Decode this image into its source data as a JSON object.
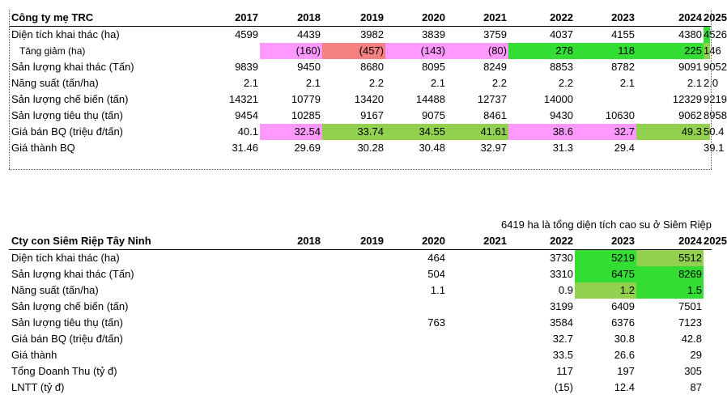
{
  "colors": {
    "pink": "#ff99ff",
    "red": "#f48080",
    "green": "#33dd33",
    "lightgreen": "#92d050"
  },
  "table1": {
    "title": "Công ty mẹ TRC",
    "years": [
      "2017",
      "2018",
      "2019",
      "2020",
      "2021",
      "2022",
      "2023",
      "2024",
      "2025"
    ],
    "rows": [
      {
        "label": "Diện tích khai thác (ha)",
        "values": [
          "4599",
          "4439",
          "3982",
          "3839",
          "3759",
          "4037",
          "4155",
          "4380",
          "4526"
        ],
        "colors": [
          "",
          "",
          "",
          "",
          "",
          "",
          "",
          "",
          "green"
        ]
      },
      {
        "label": "Tăng giảm (ha)",
        "sub": true,
        "values": [
          "",
          "(160)",
          "(457)",
          "(143)",
          "(80)",
          "278",
          "118",
          "225",
          "146"
        ],
        "colors": [
          "",
          "pink",
          "red",
          "pink",
          "pink",
          "green",
          "green",
          "green",
          "lightgreen"
        ]
      },
      {
        "label": "Sản lượng khai thác (Tấn)",
        "values": [
          "9839",
          "9450",
          "8680",
          "8095",
          "8249",
          "8853",
          "8782",
          "9091",
          "9052"
        ],
        "colors": []
      },
      {
        "label": "Năng suất (tấn/ha)",
        "values": [
          "2.1",
          "2.1",
          "2.2",
          "2.1",
          "2.2",
          "2.2",
          "2.1",
          "2.1",
          "2.0"
        ],
        "colors": []
      },
      {
        "label": "Sản lượng chế biến (tấn)",
        "values": [
          "14321",
          "10779",
          "13420",
          "14488",
          "12737",
          "14000",
          "",
          "12329",
          "9219"
        ],
        "colors": []
      },
      {
        "label": "Sản lượng tiêu thụ (tấn)",
        "values": [
          "9454",
          "10285",
          "9167",
          "9075",
          "8461",
          "9430",
          "10630",
          "9062",
          "8958"
        ],
        "colors": []
      },
      {
        "label": "Giá bán BQ (triệu đ/tấn)",
        "values": [
          "40.1",
          "32.54",
          "33.74",
          "34.55",
          "41.61",
          "38.6",
          "32.7",
          "49.3",
          "50.4"
        ],
        "colors": [
          "",
          "pink",
          "lightgreen",
          "lightgreen",
          "lightgreen",
          "pink",
          "pink",
          "lightgreen",
          "lightgreen"
        ]
      },
      {
        "label": "Giá thành BQ",
        "values": [
          "31.46",
          "29.69",
          "30.28",
          "30.48",
          "32.97",
          "31.3",
          "29.4",
          "",
          "39.1"
        ],
        "colors": []
      }
    ]
  },
  "note": "6419 ha là tổng diện tích cao su ở  Siêm Riệp",
  "table2": {
    "title": "Cty con Siêm Riệp Tây Ninh",
    "years": [
      "",
      "2018",
      "2019",
      "2020",
      "2021",
      "2022",
      "2023",
      "2024",
      "2025"
    ],
    "rows": [
      {
        "label": "Diện tích khai thác (ha)",
        "values": [
          "",
          "",
          "",
          "464",
          "",
          "3730",
          "5219",
          "5512",
          ""
        ],
        "colors": [
          "",
          "",
          "",
          "",
          "",
          "",
          "green",
          "lightgreen",
          ""
        ]
      },
      {
        "label": "Sản lượng khai thác (Tấn)",
        "values": [
          "",
          "",
          "",
          "504",
          "",
          "3310",
          "6475",
          "8269",
          ""
        ],
        "colors": [
          "",
          "",
          "",
          "",
          "",
          "",
          "green",
          "green",
          ""
        ]
      },
      {
        "label": "Năng suất (tấn/ha)",
        "values": [
          "",
          "",
          "",
          "1.1",
          "",
          "0.9",
          "1.2",
          "1.5",
          ""
        ],
        "colors": [
          "",
          "",
          "",
          "",
          "",
          "",
          "lightgreen",
          "green",
          ""
        ]
      },
      {
        "label": "Sản lượng chế biến (tấn)",
        "values": [
          "",
          "",
          "",
          "",
          "",
          "3199",
          "6409",
          "7501",
          ""
        ],
        "colors": []
      },
      {
        "label": "Sản lượng tiêu thụ (tấn)",
        "values": [
          "",
          "",
          "",
          "763",
          "",
          "3584",
          "6376",
          "7123",
          ""
        ],
        "colors": []
      },
      {
        "label": "Giá bán BQ (triệu đ/tấn)",
        "values": [
          "",
          "",
          "",
          "",
          "",
          "32.7",
          "30.8",
          "42.8",
          ""
        ],
        "colors": []
      },
      {
        "label": "Giá thành",
        "values": [
          "",
          "",
          "",
          "",
          "",
          "33.5",
          "26.6",
          "29",
          ""
        ],
        "colors": []
      },
      {
        "label": "Tổng Doanh Thu (tỷ đ)",
        "values": [
          "",
          "",
          "",
          "",
          "",
          "117",
          "197",
          "305",
          ""
        ],
        "colors": []
      },
      {
        "label": "LNTT (tỷ đ)",
        "values": [
          "",
          "",
          "",
          "",
          "",
          "(15)",
          "12.4",
          "87",
          ""
        ],
        "colors": []
      }
    ]
  }
}
